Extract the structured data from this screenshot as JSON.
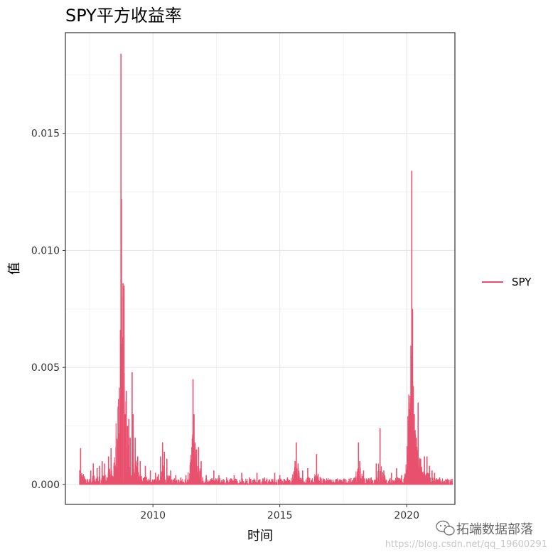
{
  "chart_data": {
    "type": "line",
    "title": "SPY平方收益率",
    "xlabel": "时间",
    "ylabel": "值",
    "xlim": [
      2006.55,
      2021.9
    ],
    "ylim": [
      -0.00085,
      0.0193
    ],
    "x_ticks": [
      2010,
      2015,
      2020
    ],
    "x_tick_labels": [
      "2010",
      "2015",
      "2020"
    ],
    "y_ticks": [
      0.0,
      0.005,
      0.01,
      0.015
    ],
    "y_tick_labels": [
      "0.000",
      "0.005",
      "0.010",
      "0.015"
    ],
    "grid": true,
    "legend_position": "right",
    "series": [
      {
        "name": "SPY",
        "color": "#E8516E",
        "spikes": [
          [
            2007.15,
            0.00155
          ],
          [
            2007.25,
            0.0004
          ],
          [
            2007.55,
            0.0006
          ],
          [
            2007.65,
            0.0009
          ],
          [
            2007.8,
            0.0007
          ],
          [
            2007.9,
            0.0008
          ],
          [
            2008.0,
            0.001
          ],
          [
            2008.1,
            0.0009
          ],
          [
            2008.25,
            0.0012
          ],
          [
            2008.35,
            0.00155
          ],
          [
            2008.5,
            0.0008
          ],
          [
            2008.6,
            0.0009
          ],
          [
            2008.7,
            0.0024
          ],
          [
            2008.72,
            0.0066
          ],
          [
            2008.74,
            0.0184
          ],
          [
            2008.76,
            0.0122
          ],
          [
            2008.78,
            0.006
          ],
          [
            2008.82,
            0.0086
          ],
          [
            2008.86,
            0.0085
          ],
          [
            2008.9,
            0.003
          ],
          [
            2008.95,
            0.004
          ],
          [
            2009.0,
            0.0025
          ],
          [
            2009.05,
            0.0028
          ],
          [
            2009.1,
            0.002
          ],
          [
            2009.18,
            0.0048
          ],
          [
            2009.22,
            0.003
          ],
          [
            2009.3,
            0.002
          ],
          [
            2009.4,
            0.0012
          ],
          [
            2009.5,
            0.001
          ],
          [
            2009.7,
            0.0008
          ],
          [
            2009.9,
            0.0006
          ],
          [
            2010.1,
            0.0005
          ],
          [
            2010.3,
            0.0012
          ],
          [
            2010.38,
            0.0018
          ],
          [
            2010.45,
            0.0014
          ],
          [
            2010.55,
            0.0011
          ],
          [
            2010.7,
            0.0006
          ],
          [
            2010.9,
            0.0004
          ],
          [
            2011.1,
            0.0003
          ],
          [
            2011.3,
            0.0004
          ],
          [
            2011.5,
            0.0005
          ],
          [
            2011.58,
            0.0045
          ],
          [
            2011.62,
            0.003
          ],
          [
            2011.66,
            0.0018
          ],
          [
            2011.72,
            0.0015
          ],
          [
            2011.8,
            0.0016
          ],
          [
            2011.9,
            0.001
          ],
          [
            2012.1,
            0.0004
          ],
          [
            2012.4,
            0.0006
          ],
          [
            2012.6,
            0.0004
          ],
          [
            2012.9,
            0.0003
          ],
          [
            2013.2,
            0.0004
          ],
          [
            2013.5,
            0.0005
          ],
          [
            2013.8,
            0.0003
          ],
          [
            2014.1,
            0.0005
          ],
          [
            2014.4,
            0.0003
          ],
          [
            2014.8,
            0.0005
          ],
          [
            2015.0,
            0.0004
          ],
          [
            2015.3,
            0.0003
          ],
          [
            2015.6,
            0.001
          ],
          [
            2015.65,
            0.0018
          ],
          [
            2015.72,
            0.0009
          ],
          [
            2015.9,
            0.0006
          ],
          [
            2016.1,
            0.0007
          ],
          [
            2016.45,
            0.0013
          ],
          [
            2016.6,
            0.0003
          ],
          [
            2016.9,
            0.0002
          ],
          [
            2017.2,
            0.0002
          ],
          [
            2017.6,
            0.0002
          ],
          [
            2017.9,
            0.0002
          ],
          [
            2018.1,
            0.0018
          ],
          [
            2018.15,
            0.001
          ],
          [
            2018.3,
            0.0006
          ],
          [
            2018.6,
            0.0003
          ],
          [
            2018.8,
            0.0009
          ],
          [
            2018.95,
            0.0024
          ],
          [
            2019.1,
            0.0006
          ],
          [
            2019.4,
            0.0005
          ],
          [
            2019.6,
            0.0007
          ],
          [
            2019.8,
            0.0004
          ],
          [
            2020.0,
            0.0004
          ],
          [
            2020.15,
            0.0014
          ],
          [
            2020.2,
            0.0134
          ],
          [
            2020.23,
            0.0075
          ],
          [
            2020.26,
            0.0042
          ],
          [
            2020.3,
            0.003
          ],
          [
            2020.38,
            0.002
          ],
          [
            2020.45,
            0.0035
          ],
          [
            2020.55,
            0.0011
          ],
          [
            2020.7,
            0.0012
          ],
          [
            2020.8,
            0.0012
          ],
          [
            2020.9,
            0.0008
          ],
          [
            2021.0,
            0.0006
          ],
          [
            2021.1,
            0.0005
          ],
          [
            2021.3,
            0.0003
          ]
        ]
      }
    ]
  },
  "watermark": {
    "brand": "拓端数据部落",
    "url": "https://blog.csdn.net/qq_19600291",
    "icon": "wechat-icon"
  }
}
